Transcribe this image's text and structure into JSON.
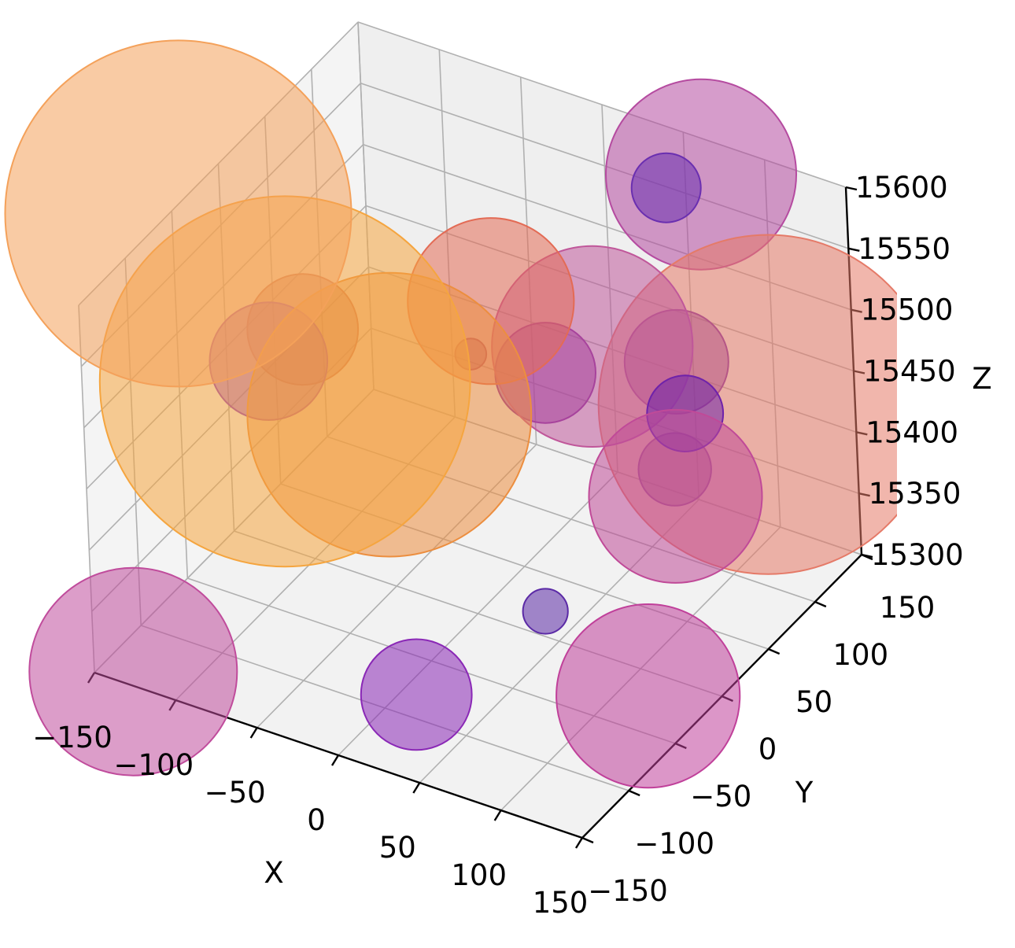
{
  "chart_data": {
    "type": "scatter",
    "subtype": "3d-bubble",
    "title": "",
    "xlabel": "X",
    "ylabel": "Y",
    "zlabel": "Z",
    "xlim": [
      -150,
      150
    ],
    "ylim": [
      -150,
      150
    ],
    "zlim": [
      15300,
      15600
    ],
    "xticks": [
      "−150",
      "−100",
      "−50",
      "0",
      "50",
      "100",
      "150"
    ],
    "yticks": [
      "−150",
      "−100",
      "−50",
      "0",
      "50",
      "100",
      "150"
    ],
    "zticks": [
      "15300",
      "15350",
      "15400",
      "15450",
      "15500",
      "15550",
      "15600"
    ],
    "grid": true,
    "colormap": [
      "#5b19a6",
      "#8b1ea8",
      "#c2448f",
      "#e8705f",
      "#f49a3c"
    ],
    "points": [
      {
        "x": -140,
        "y": -60,
        "z": 15610,
        "size": 1.0,
        "color": "#f4a15a"
      },
      {
        "x": -90,
        "y": -40,
        "z": 15480,
        "size": 1.07,
        "color": "#f5a53f"
      },
      {
        "x": -50,
        "y": 0,
        "z": 15440,
        "size": 0.82,
        "color": "#ec8e3f"
      },
      {
        "x": -20,
        "y": 60,
        "z": 15500,
        "size": 0.48,
        "color": "#e36b55"
      },
      {
        "x": 30,
        "y": 80,
        "z": 15470,
        "size": 0.58,
        "color": "#c0579a"
      },
      {
        "x": 60,
        "y": 150,
        "z": 15570,
        "size": 0.55,
        "color": "#b54ba0"
      },
      {
        "x": 120,
        "y": 110,
        "z": 15440,
        "size": 0.98,
        "color": "#e57a68"
      },
      {
        "x": 90,
        "y": 60,
        "z": 15390,
        "size": 0.5,
        "color": "#c04a98"
      },
      {
        "x": 110,
        "y": -10,
        "z": 15290,
        "size": 0.53,
        "color": "#c0409a"
      },
      {
        "x": -150,
        "y": -110,
        "z": 15270,
        "size": 0.6,
        "color": "#c04c9c"
      },
      {
        "x": -130,
        "y": 10,
        "z": 15440,
        "size": 0.34,
        "color": "#8a35bf"
      },
      {
        "x": -120,
        "y": 30,
        "z": 15455,
        "size": 0.32,
        "color": "#c0675e"
      },
      {
        "x": -40,
        "y": 70,
        "z": 15440,
        "size": 0.09,
        "color": "#9c4a70"
      },
      {
        "x": 0,
        "y": 80,
        "z": 15435,
        "size": 0.29,
        "color": "#8a2a9e"
      },
      {
        "x": 50,
        "y": 130,
        "z": 15570,
        "size": 0.2,
        "color": "#6a2fb0"
      },
      {
        "x": 70,
        "y": 100,
        "z": 15460,
        "size": 0.3,
        "color": "#7a2aac"
      },
      {
        "x": 80,
        "y": 90,
        "z": 15430,
        "size": 0.22,
        "color": "#6e22aa"
      },
      {
        "x": 60,
        "y": 110,
        "z": 15360,
        "size": 0.21,
        "color": "#6a2fb0"
      },
      {
        "x": 20,
        "y": -100,
        "z": 15320,
        "size": 0.32,
        "color": "#8a28b6"
      },
      {
        "x": 30,
        "y": 20,
        "z": 15300,
        "size": 0.13,
        "color": "#5b2aa6"
      }
    ]
  }
}
